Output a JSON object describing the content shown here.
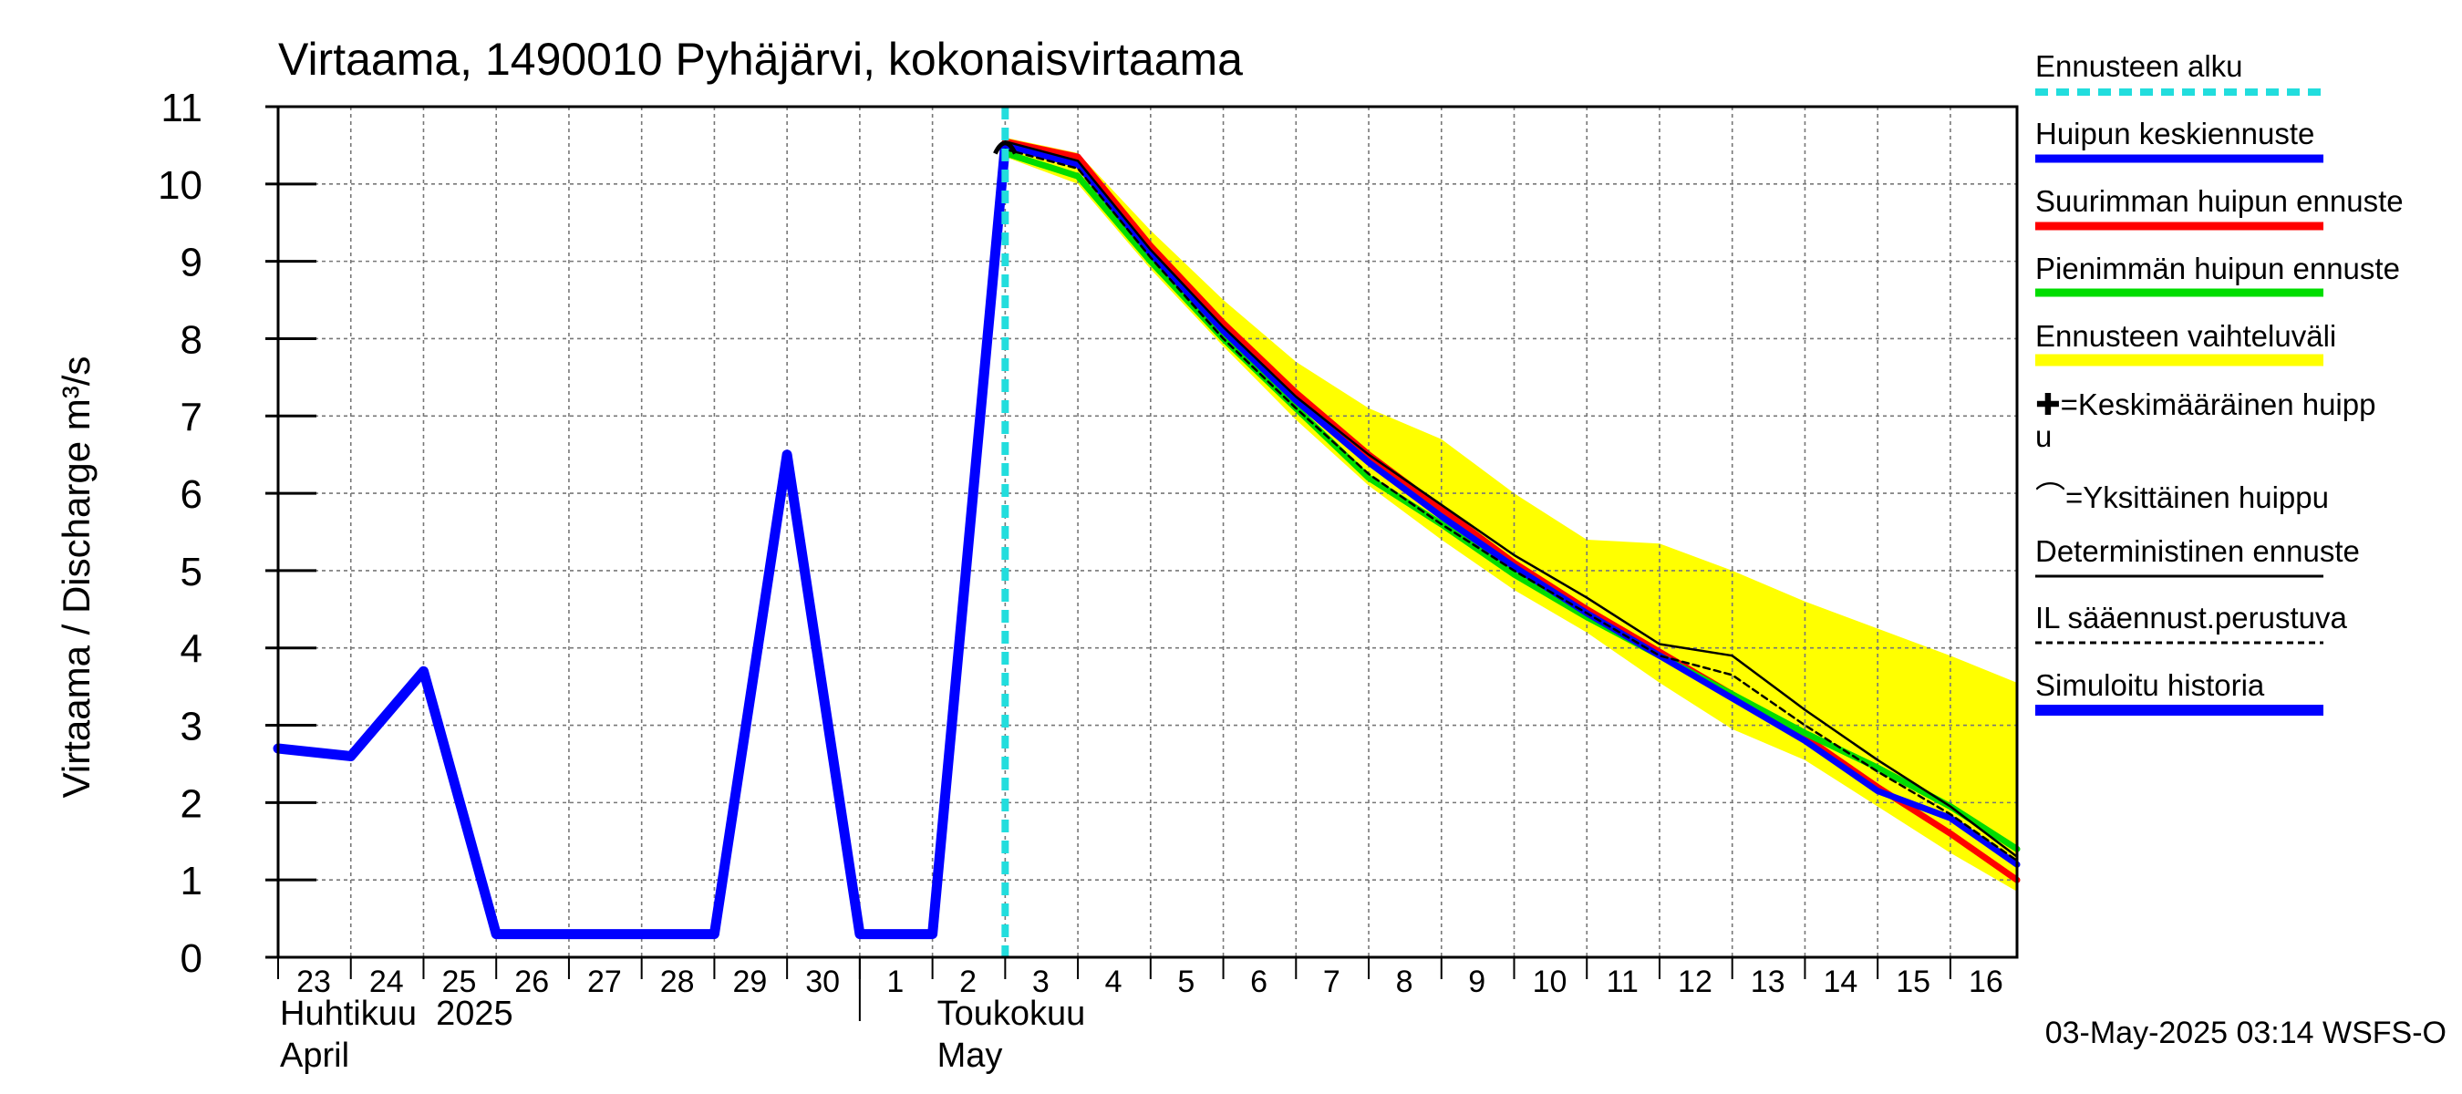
{
  "chart_data": {
    "type": "line",
    "title": "Virtaama, 1490010 Pyhäjärvi, kokonaisvirtaama",
    "ylabel": "Virtaama / Discharge    m³/s",
    "ylim": [
      0,
      11
    ],
    "yticks": [
      "0",
      "1",
      "2",
      "3",
      "4",
      "5",
      "6",
      "7",
      "8",
      "9",
      "10",
      "11"
    ],
    "xlim": [
      "2025-04-23",
      "2025-05-16T22:00"
    ],
    "day_ticks": [
      "23",
      "24",
      "25",
      "26",
      "27",
      "28",
      "29",
      "30",
      "1",
      "2",
      "3",
      "4",
      "5",
      "6",
      "7",
      "8",
      "9",
      "10",
      "11",
      "12",
      "13",
      "14",
      "15",
      "16"
    ],
    "day_dates": [
      "2025-04-23",
      "2025-04-24",
      "2025-04-25",
      "2025-04-26",
      "2025-04-27",
      "2025-04-28",
      "2025-04-29",
      "2025-04-30",
      "2025-05-01",
      "2025-05-02",
      "2025-05-03",
      "2025-05-04",
      "2025-05-05",
      "2025-05-06",
      "2025-05-07",
      "2025-05-08",
      "2025-05-09",
      "2025-05-10",
      "2025-05-11",
      "2025-05-12",
      "2025-05-13",
      "2025-05-14",
      "2025-05-15",
      "2025-05-16"
    ],
    "month_labels": [
      {
        "fi": "Huhtikuu  2025",
        "en": "April",
        "date": "2025-04-23"
      },
      {
        "fi": "Toukokuu",
        "en": "May",
        "date": "2025-05-02"
      }
    ],
    "month_separator": "2025-05-01",
    "grid": true,
    "legend_position": "right",
    "forecast_start": "2025-05-03",
    "series": [
      {
        "name": "Simuloitu historia",
        "color": "#0000ff",
        "points": [
          [
            "2025-04-23",
            2.7
          ],
          [
            "2025-04-24",
            2.6
          ],
          [
            "2025-04-25",
            3.7
          ],
          [
            "2025-04-26",
            0.3
          ],
          [
            "2025-04-29",
            0.3
          ],
          [
            "2025-04-30",
            6.5
          ],
          [
            "2025-05-01",
            0.3
          ],
          [
            "2025-05-02",
            0.3
          ],
          [
            "2025-05-03",
            10.5
          ]
        ]
      },
      {
        "name": "Suurimman huipun ennuste",
        "color": "#ff0000",
        "points": [
          [
            "2025-05-03",
            10.55
          ],
          [
            "2025-05-04",
            10.35
          ],
          [
            "2025-05-05",
            9.2
          ],
          [
            "2025-05-06",
            8.2
          ],
          [
            "2025-05-07",
            7.3
          ],
          [
            "2025-05-08",
            6.5
          ],
          [
            "2025-05-09",
            5.8
          ],
          [
            "2025-05-10",
            5.1
          ],
          [
            "2025-05-11",
            4.5
          ],
          [
            "2025-05-12",
            3.95
          ],
          [
            "2025-05-13",
            3.4
          ],
          [
            "2025-05-14",
            2.85
          ],
          [
            "2025-05-15",
            2.2
          ],
          [
            "2025-05-16",
            1.6
          ],
          [
            "2025-05-16T22:00",
            1.0
          ]
        ]
      },
      {
        "name": "Pienimmän huipun ennuste",
        "color": "#00dd00",
        "points": [
          [
            "2025-05-03",
            10.4
          ],
          [
            "2025-05-04",
            10.1
          ],
          [
            "2025-05-05",
            9.0
          ],
          [
            "2025-05-06",
            8.0
          ],
          [
            "2025-05-07",
            7.1
          ],
          [
            "2025-05-08",
            6.2
          ],
          [
            "2025-05-09",
            5.6
          ],
          [
            "2025-05-10",
            4.95
          ],
          [
            "2025-05-11",
            4.4
          ],
          [
            "2025-05-12",
            3.9
          ],
          [
            "2025-05-13",
            3.4
          ],
          [
            "2025-05-14",
            2.9
          ],
          [
            "2025-05-15",
            2.45
          ],
          [
            "2025-05-16",
            1.95
          ],
          [
            "2025-05-16T22:00",
            1.4
          ]
        ]
      },
      {
        "name": "Huipun keskiennuste",
        "color": "#0000ff",
        "points": [
          [
            "2025-05-03",
            10.5
          ],
          [
            "2025-05-04",
            10.25
          ],
          [
            "2025-05-05",
            9.1
          ],
          [
            "2025-05-06",
            8.1
          ],
          [
            "2025-05-07",
            7.2
          ],
          [
            "2025-05-08",
            6.4
          ],
          [
            "2025-05-09",
            5.7
          ],
          [
            "2025-05-10",
            5.05
          ],
          [
            "2025-05-11",
            4.45
          ],
          [
            "2025-05-12",
            3.9
          ],
          [
            "2025-05-13",
            3.35
          ],
          [
            "2025-05-14",
            2.8
          ],
          [
            "2025-05-15",
            2.15
          ],
          [
            "2025-05-16",
            1.8
          ],
          [
            "2025-05-16T22:00",
            1.2
          ]
        ]
      },
      {
        "name": "Deterministinen ennuste",
        "color": "#000000",
        "points": [
          [
            "2025-05-03",
            10.55
          ],
          [
            "2025-05-04",
            10.3
          ],
          [
            "2025-05-05",
            9.15
          ],
          [
            "2025-05-06",
            8.15
          ],
          [
            "2025-05-07",
            7.25
          ],
          [
            "2025-05-08",
            6.5
          ],
          [
            "2025-05-09",
            5.85
          ],
          [
            "2025-05-10",
            5.2
          ],
          [
            "2025-05-11",
            4.65
          ],
          [
            "2025-05-12",
            4.05
          ],
          [
            "2025-05-13",
            3.9
          ],
          [
            "2025-05-14",
            3.2
          ],
          [
            "2025-05-15",
            2.55
          ],
          [
            "2025-05-16",
            1.95
          ],
          [
            "2025-05-16T22:00",
            1.3
          ]
        ]
      },
      {
        "name": "IL sääennust.perustuva",
        "color": "#000000",
        "points": [
          [
            "2025-05-03",
            10.45
          ],
          [
            "2025-05-04",
            10.2
          ],
          [
            "2025-05-05",
            9.05
          ],
          [
            "2025-05-06",
            8.0
          ],
          [
            "2025-05-07",
            7.1
          ],
          [
            "2025-05-08",
            6.25
          ],
          [
            "2025-05-09",
            5.6
          ],
          [
            "2025-05-10",
            5.0
          ],
          [
            "2025-05-11",
            4.45
          ],
          [
            "2025-05-12",
            3.9
          ],
          [
            "2025-05-13",
            3.65
          ],
          [
            "2025-05-14",
            3.0
          ],
          [
            "2025-05-15",
            2.4
          ],
          [
            "2025-05-16",
            1.85
          ],
          [
            "2025-05-16T22:00",
            1.25
          ]
        ]
      }
    ],
    "band": {
      "name": "Ennusteen vaihteluväli",
      "color": "#ffff00",
      "upper": [
        [
          "2025-05-03",
          10.6
        ],
        [
          "2025-05-04",
          10.4
        ],
        [
          "2025-05-05",
          9.4
        ],
        [
          "2025-05-06",
          8.5
        ],
        [
          "2025-05-07",
          7.7
        ],
        [
          "2025-05-08",
          7.1
        ],
        [
          "2025-05-09",
          6.7
        ],
        [
          "2025-05-10",
          6.0
        ],
        [
          "2025-05-11",
          5.4
        ],
        [
          "2025-05-12",
          5.35
        ],
        [
          "2025-05-13",
          5.0
        ],
        [
          "2025-05-14",
          4.6
        ],
        [
          "2025-05-15",
          4.25
        ],
        [
          "2025-05-16",
          3.9
        ],
        [
          "2025-05-16T22:00",
          3.55
        ]
      ],
      "lower": [
        [
          "2025-05-03",
          10.35
        ],
        [
          "2025-05-04",
          10.0
        ],
        [
          "2025-05-05",
          8.9
        ],
        [
          "2025-05-06",
          7.9
        ],
        [
          "2025-05-07",
          6.95
        ],
        [
          "2025-05-08",
          6.1
        ],
        [
          "2025-05-09",
          5.4
        ],
        [
          "2025-05-10",
          4.75
        ],
        [
          "2025-05-11",
          4.2
        ],
        [
          "2025-05-12",
          3.55
        ],
        [
          "2025-05-13",
          2.95
        ],
        [
          "2025-05-14",
          2.55
        ],
        [
          "2025-05-15",
          1.95
        ],
        [
          "2025-05-16",
          1.35
        ],
        [
          "2025-05-16T22:00",
          0.85
        ]
      ]
    },
    "peak_marker": {
      "date": "2025-05-03",
      "value": 10.5
    }
  },
  "legend": [
    {
      "label": "Ennusteen alku",
      "style": "dash-cyan"
    },
    {
      "label": "Huipun keskiennuste",
      "style": "blue"
    },
    {
      "label": "Suurimman huipun ennuste",
      "style": "red"
    },
    {
      "label": "Pienimmän huipun ennuste",
      "style": "green"
    },
    {
      "label": "Ennusteen vaihteluväli",
      "style": "yellow"
    },
    {
      "label": "✚=Keskimääräinen huipp",
      "label2": "u",
      "style": "none"
    },
    {
      "label": "⌒=Yksittäinen huippu",
      "style": "none"
    },
    {
      "label": "Deterministinen ennuste",
      "style": "black"
    },
    {
      "label": "IL sääennust.perustuva",
      "style": "black-dash"
    },
    {
      "label": "Simuloitu historia",
      "style": "blue-thick"
    }
  ],
  "footer": "03-May-2025 03:14 WSFS-O"
}
